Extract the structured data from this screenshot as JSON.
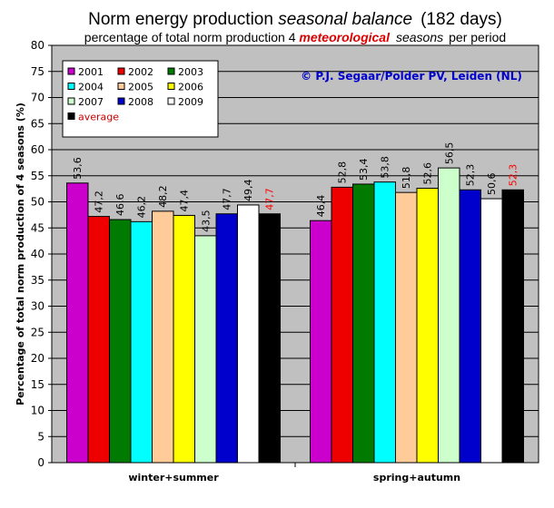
{
  "chart_data": {
    "type": "bar",
    "title_plain": "Norm energy production ",
    "title_italic": "seasonal balance",
    "title_tail": "(182 days)",
    "subtitle_pre": "percentage of total norm production 4 ",
    "subtitle_emph": "meteorological",
    "subtitle_italic": "seasons",
    "subtitle_post": "per period",
    "ylabel": "Percentage of total norm production of 4 seasons (%)",
    "xlabel": "",
    "ylim": [
      0,
      80
    ],
    "yticks": [
      "0",
      "5",
      "10",
      "15",
      "20",
      "25",
      "30",
      "35",
      "40",
      "45",
      "50",
      "55",
      "60",
      "65",
      "70",
      "75",
      "80"
    ],
    "categories": [
      "winter+summer",
      "spring+autumn"
    ],
    "series": [
      {
        "name": "2001",
        "color": "#cc00cc",
        "values": [
          53.6,
          46.4
        ],
        "labels": [
          "53,6",
          "46,4"
        ]
      },
      {
        "name": "2002",
        "color": "#ee0000",
        "values": [
          47.2,
          52.8
        ],
        "labels": [
          "47,2",
          "52,8"
        ]
      },
      {
        "name": "2003",
        "color": "#007a00",
        "values": [
          46.6,
          53.4
        ],
        "labels": [
          "46,6",
          "53,4"
        ]
      },
      {
        "name": "2004",
        "color": "#00ffff",
        "values": [
          46.2,
          53.8
        ],
        "labels": [
          "46,2",
          "53,8"
        ]
      },
      {
        "name": "2005",
        "color": "#ffcc99",
        "values": [
          48.2,
          51.8
        ],
        "labels": [
          "48,2",
          "51,8"
        ]
      },
      {
        "name": "2006",
        "color": "#ffff00",
        "values": [
          47.4,
          52.6
        ],
        "labels": [
          "47,4",
          "52,6"
        ]
      },
      {
        "name": "2007",
        "color": "#ccffcc",
        "values": [
          43.5,
          56.5
        ],
        "labels": [
          "43,5",
          "56,5"
        ]
      },
      {
        "name": "2008",
        "color": "#0000cc",
        "values": [
          47.7,
          52.3
        ],
        "labels": [
          "47,7",
          "52,3"
        ]
      },
      {
        "name": "2009",
        "color": "#ffffff",
        "values": [
          49.4,
          50.6
        ],
        "labels": [
          "49,4",
          "50,6"
        ]
      },
      {
        "name": "average",
        "color": "#000000",
        "values": [
          47.7,
          52.3
        ],
        "labels": [
          "47,7",
          "52,3"
        ],
        "label_color": "#ff0000"
      }
    ],
    "grid": true,
    "legend_position": "top-left",
    "plot_background": "#c0c0c0",
    "annotation": "© P.J. Segaar/Polder PV, Leiden (NL)"
  }
}
